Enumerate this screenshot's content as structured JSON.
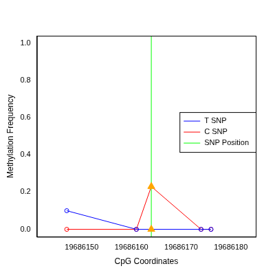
{
  "chart_data": {
    "type": "line",
    "x_label": "CpG Coordinates",
    "y_label": "Methylation Frequency",
    "x": [
      19686147,
      19686161,
      19686164,
      19686174,
      19686176
    ],
    "series": [
      {
        "name": "T SNP",
        "color": "#0000ff",
        "marker": "circle",
        "values": [
          0.1,
          0,
          0,
          0,
          0
        ]
      },
      {
        "name": "C SNP",
        "color": "#ff0000",
        "marker": "circle",
        "values": [
          0,
          0,
          0.23,
          0,
          0
        ]
      }
    ],
    "snp": {
      "name": "SNP Position",
      "color": "#00ff00",
      "x": 19686164
    },
    "xlim": [
      19686141,
      19686185
    ],
    "xticks": [
      19686150,
      19686160,
      19686170,
      19686180
    ],
    "ylim": [
      -0.04,
      1.04
    ],
    "yticks": [
      {
        "value": 0,
        "label": "0.0"
      },
      0.2,
      0.4,
      0.6,
      0.8,
      {
        "value": 1,
        "label": "1.0"
      }
    ],
    "grid": false,
    "legend": "right"
  }
}
